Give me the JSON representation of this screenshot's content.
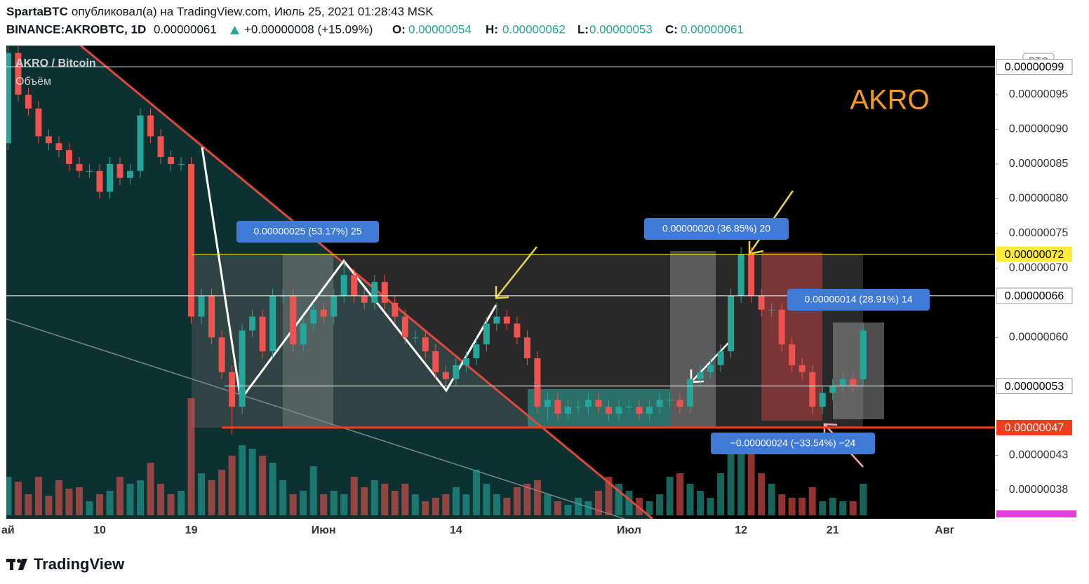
{
  "header": {
    "author": "SpartaBTC",
    "published": "опубликовал(а) на TradingView.com, Июль 25, 2021 01:28:43 MSK",
    "symbol": "BINANCE:AKROBTC, 1D",
    "last": "0.00000061",
    "change": "+0.00000008 (+15.09%)",
    "o_label": "O:",
    "o": "0.00000054",
    "h_label": "H:",
    "h": "0.00000062",
    "l_label": "L:",
    "l": "0.00000053",
    "c_label": "C:",
    "c": "0.00000061"
  },
  "footer": {
    "brand": "TradingView"
  },
  "chart_data": {
    "type": "candlestick",
    "title": "AKRO / Bitcoin",
    "volume_title": "Объём",
    "currency_badge": "BTC",
    "annotation_text": "AKRO",
    "up_color": "#26a69a",
    "down_color": "#ef5350",
    "grid": false,
    "ylim": [
      3.436e-07,
      1.0177e-06
    ],
    "yticks": [
      {
        "value": 9.5e-07,
        "label": "0.00000095"
      },
      {
        "value": 9e-07,
        "label": "0.00000090"
      },
      {
        "value": 8.5e-07,
        "label": "0.00000085"
      },
      {
        "value": 8e-07,
        "label": "0.00000080"
      },
      {
        "value": 7.5e-07,
        "label": "0.00000075"
      },
      {
        "value": 7e-07,
        "label": "0.00000070"
      },
      {
        "value": 6e-07,
        "label": "0.00000060"
      },
      {
        "value": 4.3e-07,
        "label": "0.00000043"
      },
      {
        "value": 3.8e-07,
        "label": "0.00000038"
      }
    ],
    "price_lines": [
      {
        "value": 9.9e-07,
        "label": "0.00000099",
        "color": "#ffffff",
        "text_color": "#000000"
      },
      {
        "value": 7.2e-07,
        "label": "0.00000072",
        "color": "#ffeb3b",
        "text_color": "#000000"
      },
      {
        "value": 6.6e-07,
        "label": "0.00000066",
        "color": "#ffffff",
        "text_color": "#000000"
      },
      {
        "value": 5.3e-07,
        "label": "0.00000053",
        "color": "#ffffff",
        "text_color": "#000000"
      },
      {
        "value": 4.7e-07,
        "label": "0.00000047",
        "color": "#f23d1d",
        "text_color": "#ffffff"
      }
    ],
    "measures": [
      "0.00000025 (53.17%) 25",
      "0.00000020 (36.85%) 20",
      "0.00000014 (28.91%) 14",
      "−0.00000024 (−33.54%) −24"
    ],
    "categories": [
      "ай",
      null,
      null,
      null,
      null,
      null,
      null,
      null,
      null,
      "10",
      null,
      null,
      null,
      null,
      null,
      null,
      null,
      null,
      "19",
      null,
      null,
      null,
      null,
      null,
      null,
      null,
      null,
      null,
      null,
      null,
      null,
      "Июн",
      null,
      null,
      null,
      null,
      null,
      null,
      null,
      null,
      null,
      null,
      null,
      null,
      "14",
      null,
      null,
      null,
      null,
      null,
      null,
      null,
      null,
      null,
      null,
      null,
      null,
      null,
      null,
      null,
      null,
      "Июл",
      null,
      null,
      null,
      null,
      null,
      null,
      null,
      null,
      null,
      null,
      "12",
      null,
      null,
      null,
      null,
      null,
      null,
      null,
      null,
      "21",
      null,
      null,
      null,
      null,
      null,
      null,
      null,
      null,
      null,
      null,
      "Авг"
    ],
    "open": [
      8.8e-07,
      1.01e-06,
      9.5e-07,
      9.3e-07,
      8.9e-07,
      8.8e-07,
      8.7e-07,
      8.5e-07,
      8.4e-07,
      8.4e-07,
      8.1e-07,
      8.5e-07,
      8.3e-07,
      8.4e-07,
      9.2e-07,
      8.9e-07,
      8.6e-07,
      8.5e-07,
      8.5e-07,
      6.3e-07,
      6.6e-07,
      6e-07,
      5.5e-07,
      5e-07,
      6.1e-07,
      6.3e-07,
      5.8e-07,
      6.6e-07,
      6.6e-07,
      5.9e-07,
      6.2e-07,
      6.4e-07,
      6.3e-07,
      6.6e-07,
      6.9e-07,
      6.6e-07,
      6.5e-07,
      6.8e-07,
      6.5e-07,
      6.3e-07,
      6e-07,
      6e-07,
      5.8e-07,
      5.5e-07,
      5.4e-07,
      5.6e-07,
      5.7e-07,
      5.9e-07,
      6.2e-07,
      6.3e-07,
      6.2e-07,
      6e-07,
      5.7e-07,
      5e-07,
      5.1e-07,
      4.9e-07,
      5e-07,
      5e-07,
      5.1e-07,
      5e-07,
      4.9e-07,
      5e-07,
      5e-07,
      4.9e-07,
      5e-07,
      5.1e-07,
      5.1e-07,
      5e-07,
      5.4e-07,
      5.5e-07,
      5.6e-07,
      5.8e-07,
      6.6e-07,
      7.2e-07,
      6.6e-07,
      6.4e-07,
      6.4e-07,
      5.9e-07,
      5.6e-07,
      5.5e-07,
      5e-07,
      5.2e-07,
      5.3e-07,
      5.4e-07,
      5.4e-07,
      null,
      null,
      null,
      null,
      null,
      null,
      null,
      null
    ],
    "high": [
      1.03e-06,
      1.02e-06,
      9.6e-07,
      9.4e-07,
      9e-07,
      8.9e-07,
      8.8e-07,
      8.6e-07,
      8.5e-07,
      8.5e-07,
      8.6e-07,
      8.6e-07,
      8.5e-07,
      9.3e-07,
      9.3e-07,
      9e-07,
      8.7e-07,
      8.6e-07,
      8.6e-07,
      6.7e-07,
      6.7e-07,
      6.1e-07,
      5.6e-07,
      6.2e-07,
      6.4e-07,
      6.4e-07,
      6.7e-07,
      6.7e-07,
      6.7e-07,
      6.3e-07,
      6.5e-07,
      6.5e-07,
      6.7e-07,
      7.1e-07,
      7e-07,
      6.7e-07,
      6.9e-07,
      6.9e-07,
      6.6e-07,
      6.4e-07,
      6.1e-07,
      6.1e-07,
      5.9e-07,
      5.6e-07,
      5.7e-07,
      5.8e-07,
      6e-07,
      6.3e-07,
      6.5e-07,
      6.4e-07,
      6.3e-07,
      6.1e-07,
      5.8e-07,
      5.2e-07,
      5.2e-07,
      5.1e-07,
      5.1e-07,
      5.2e-07,
      5.2e-07,
      5.1e-07,
      5.1e-07,
      5.1e-07,
      5.1e-07,
      5.1e-07,
      5.2e-07,
      5.2e-07,
      5.2e-07,
      5.5e-07,
      5.6e-07,
      5.7e-07,
      5.9e-07,
      6.7e-07,
      7.3e-07,
      7.3e-07,
      6.7e-07,
      6.5e-07,
      6.5e-07,
      6e-07,
      5.7e-07,
      5.6e-07,
      5.3e-07,
      5.4e-07,
      5.5e-07,
      5.5e-07,
      6.2e-07,
      null,
      null,
      null,
      null,
      null,
      null,
      null,
      null
    ],
    "low": [
      8.7e-07,
      9.4e-07,
      9.2e-07,
      8.8e-07,
      8.7e-07,
      8.6e-07,
      8.4e-07,
      8.3e-07,
      8.3e-07,
      8e-07,
      8e-07,
      8.2e-07,
      8.2e-07,
      8.3e-07,
      8.8e-07,
      8.5e-07,
      8.4e-07,
      8.4e-07,
      6.2e-07,
      6.2e-07,
      5.9e-07,
      5.4e-07,
      4.6e-07,
      4.9e-07,
      6e-07,
      5.7e-07,
      5.7e-07,
      6.5e-07,
      5.8e-07,
      5.8e-07,
      6.1e-07,
      6.2e-07,
      6.2e-07,
      6.5e-07,
      6.5e-07,
      6.4e-07,
      6.4e-07,
      6.4e-07,
      6.2e-07,
      5.9e-07,
      5.9e-07,
      5.7e-07,
      5.4e-07,
      5.3e-07,
      5.3e-07,
      5.5e-07,
      5.6e-07,
      5.8e-07,
      6.1e-07,
      6.1e-07,
      5.9e-07,
      5.6e-07,
      4.9e-07,
      4.8e-07,
      4.8e-07,
      4.8e-07,
      4.9e-07,
      4.9e-07,
      4.9e-07,
      4.8e-07,
      4.8e-07,
      4.9e-07,
      4.8e-07,
      4.8e-07,
      4.9e-07,
      5e-07,
      4.9e-07,
      4.9e-07,
      5.3e-07,
      5.4e-07,
      5.5e-07,
      5.7e-07,
      6.5e-07,
      6.5e-07,
      6.3e-07,
      6.3e-07,
      5.8e-07,
      5.5e-07,
      5.4e-07,
      4.9e-07,
      4.9e-07,
      5.1e-07,
      5.2e-07,
      5.2e-07,
      5.3e-07,
      null,
      null,
      null,
      null,
      null,
      null,
      null,
      null
    ],
    "close": [
      1.01e-06,
      9.5e-07,
      9.3e-07,
      8.9e-07,
      8.8e-07,
      8.7e-07,
      8.5e-07,
      8.4e-07,
      8.4e-07,
      8.1e-07,
      8.5e-07,
      8.3e-07,
      8.4e-07,
      9.2e-07,
      8.9e-07,
      8.6e-07,
      8.5e-07,
      8.5e-07,
      6.3e-07,
      6.6e-07,
      6e-07,
      5.5e-07,
      5e-07,
      6.1e-07,
      6.3e-07,
      5.8e-07,
      6.6e-07,
      6.6e-07,
      5.9e-07,
      6.2e-07,
      6.4e-07,
      6.3e-07,
      6.6e-07,
      6.9e-07,
      6.6e-07,
      6.5e-07,
      6.8e-07,
      6.5e-07,
      6.3e-07,
      6e-07,
      6e-07,
      5.8e-07,
      5.5e-07,
      5.4e-07,
      5.6e-07,
      5.7e-07,
      5.9e-07,
      6.2e-07,
      6.3e-07,
      6.2e-07,
      6e-07,
      5.7e-07,
      5e-07,
      5.1e-07,
      4.9e-07,
      5e-07,
      5e-07,
      5.1e-07,
      5e-07,
      4.9e-07,
      5e-07,
      5e-07,
      4.9e-07,
      5e-07,
      5.1e-07,
      5.1e-07,
      5e-07,
      5.4e-07,
      5.5e-07,
      5.6e-07,
      5.8e-07,
      6.6e-07,
      7.2e-07,
      6.6e-07,
      6.4e-07,
      6.4e-07,
      5.9e-07,
      5.6e-07,
      5.5e-07,
      5e-07,
      5.2e-07,
      5.3e-07,
      5.4e-07,
      5.3e-07,
      6.1e-07,
      null,
      null,
      null,
      null,
      null,
      null,
      null,
      null
    ],
    "volume": [
      55,
      48,
      30,
      55,
      28,
      50,
      38,
      40,
      20,
      30,
      35,
      55,
      45,
      50,
      75,
      45,
      30,
      35,
      167,
      60,
      50,
      65,
      85,
      100,
      95,
      85,
      75,
      50,
      30,
      35,
      70,
      30,
      35,
      30,
      55,
      40,
      50,
      45,
      35,
      45,
      30,
      20,
      25,
      30,
      40,
      30,
      65,
      45,
      30,
      25,
      40,
      45,
      50,
      30,
      20,
      15,
      25,
      20,
      35,
      55,
      45,
      35,
      25,
      20,
      30,
      55,
      60,
      45,
      35,
      25,
      60,
      100,
      115,
      90,
      60,
      45,
      30,
      25,
      25,
      40,
      20,
      25,
      20,
      20,
      45,
      null,
      null,
      null,
      null,
      null,
      null,
      null,
      null
    ]
  }
}
